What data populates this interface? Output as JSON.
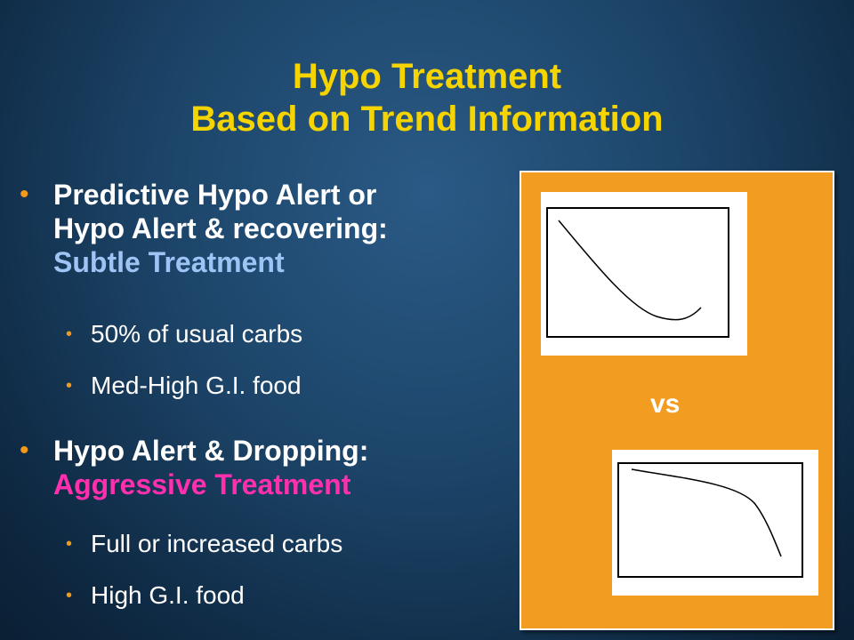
{
  "title": {
    "line1": "Hypo Treatment",
    "line2": "Based on Trend Information"
  },
  "bullets": [
    {
      "line1": "Predictive Hypo Alert or",
      "line2": "Hypo Alert & recovering:",
      "highlight": "Subtle Treatment",
      "sub": [
        "50% of usual carbs",
        "Med-High G.I. food"
      ]
    },
    {
      "line1": "Hypo Alert & Dropping:",
      "highlight": "Aggressive Treatment",
      "sub": [
        "Full or increased carbs",
        "High G.I. food"
      ]
    }
  ],
  "panel": {
    "vs_label": "vs",
    "graphs": [
      {
        "trend": "dropping then recovering"
      },
      {
        "trend": "steadily dropping, accelerating"
      }
    ]
  },
  "colors": {
    "title": "#f5d400",
    "bullet": "#f29a1b",
    "subtle": "#9ec3f5",
    "aggressive": "#ff2fae",
    "panel": "#f29d21"
  }
}
